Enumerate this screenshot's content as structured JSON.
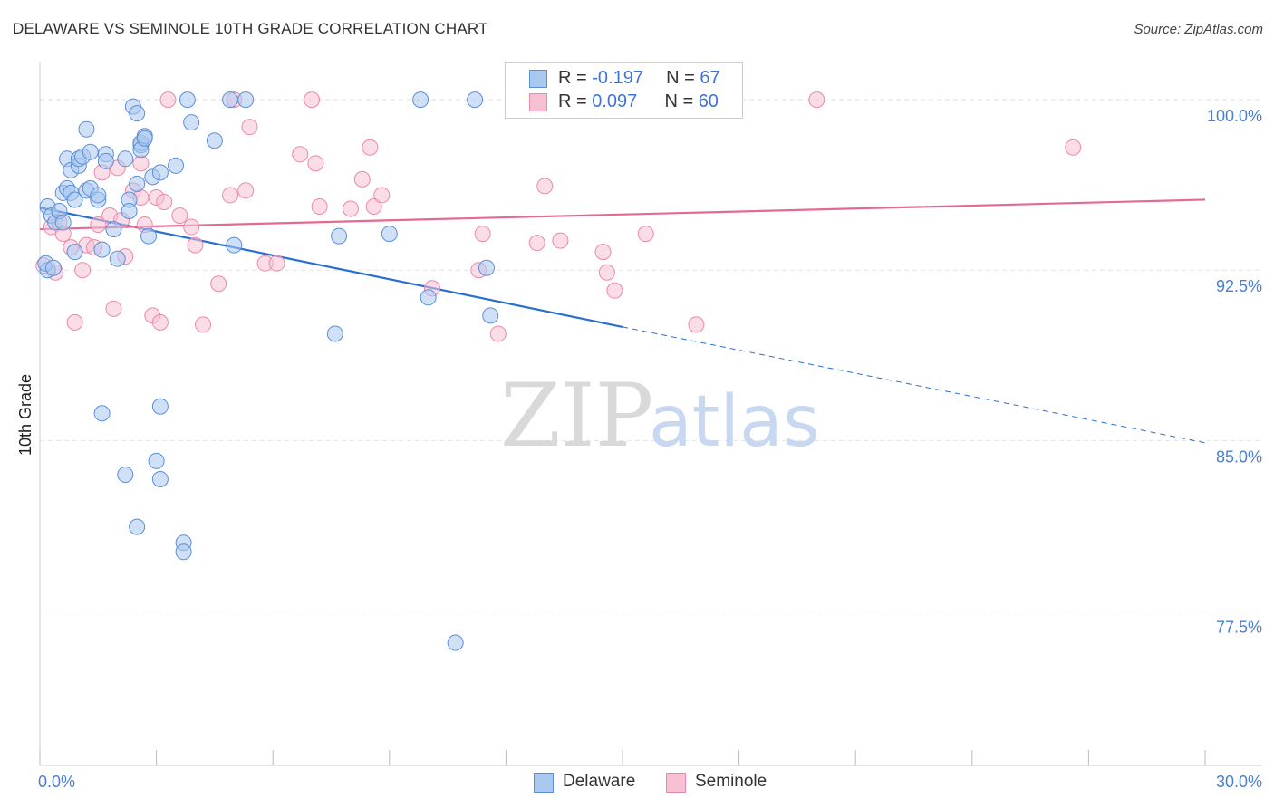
{
  "title": "DELAWARE VS SEMINOLE 10TH GRADE CORRELATION CHART",
  "source": "Source: ZipAtlas.com",
  "watermark": {
    "zip": "ZIP",
    "atlas": "atlas"
  },
  "colors": {
    "blue_fill": "#a9c8f0",
    "blue_stroke": "#5b8fd8",
    "blue_line": "#2a6fd0",
    "pink_fill": "#f7c1d3",
    "pink_stroke": "#e98aaa",
    "pink_line": "#e46a93",
    "tick_text": "#4a7fd6",
    "grid": "#e4e4e4"
  },
  "legend": {
    "rows": [
      {
        "r_label": "R = ",
        "r_value": "-0.197",
        "n_label": "N = ",
        "n_value": "67"
      },
      {
        "r_label": "R = ",
        "r_value": "0.097",
        "n_label": "N = ",
        "n_value": "60"
      }
    ]
  },
  "chart_data": {
    "type": "scatter",
    "title": "DELAWARE VS SEMINOLE 10TH GRADE CORRELATION CHART",
    "xlabel": "",
    "ylabel": "10th Grade",
    "xlim": [
      0,
      30
    ],
    "ylim": [
      70.7,
      101.2
    ],
    "x_tick_labels": [
      "0.0%",
      "30.0%"
    ],
    "y_ticks": [
      77.5,
      85.0,
      92.5,
      100.0
    ],
    "y_tick_labels": [
      "77.5%",
      "85.0%",
      "92.5%",
      "100.0%"
    ],
    "grid": true,
    "legend_position": "bottom",
    "series": [
      {
        "name": "Delaware",
        "R": -0.197,
        "N": 67,
        "trend": {
          "x0": 0.0,
          "y0": 95.25,
          "x1": 15.0,
          "y1": 90.0,
          "dashed_to_x": 30.0,
          "dashed_to_y": 84.9
        },
        "points": [
          [
            0.2,
            95.3
          ],
          [
            0.3,
            94.9
          ],
          [
            0.4,
            94.6
          ],
          [
            0.5,
            95.1
          ],
          [
            0.6,
            94.6
          ],
          [
            0.6,
            95.9
          ],
          [
            0.7,
            96.1
          ],
          [
            0.8,
            95.9
          ],
          [
            0.9,
            95.6
          ],
          [
            0.7,
            97.4
          ],
          [
            0.8,
            96.9
          ],
          [
            1.0,
            97.1
          ],
          [
            1.0,
            97.4
          ],
          [
            1.1,
            97.5
          ],
          [
            1.2,
            96.0
          ],
          [
            1.3,
            96.1
          ],
          [
            1.2,
            98.7
          ],
          [
            1.3,
            97.7
          ],
          [
            1.5,
            95.6
          ],
          [
            1.5,
            95.8
          ],
          [
            1.7,
            97.6
          ],
          [
            1.7,
            97.3
          ],
          [
            1.9,
            94.3
          ],
          [
            2.0,
            93.0
          ],
          [
            1.6,
            93.4
          ],
          [
            0.9,
            93.3
          ],
          [
            0.2,
            92.5
          ],
          [
            2.2,
            97.4
          ],
          [
            2.3,
            95.6
          ],
          [
            2.3,
            95.1
          ],
          [
            2.4,
            99.7
          ],
          [
            2.5,
            96.3
          ],
          [
            2.5,
            99.4
          ],
          [
            2.6,
            98.0
          ],
          [
            2.6,
            98.1
          ],
          [
            2.6,
            97.8
          ],
          [
            2.7,
            98.4
          ],
          [
            2.7,
            98.3
          ],
          [
            2.8,
            94.0
          ],
          [
            2.9,
            96.6
          ],
          [
            3.1,
            96.8
          ],
          [
            3.5,
            97.1
          ],
          [
            3.9,
            99.0
          ],
          [
            3.8,
            100.0
          ],
          [
            4.5,
            98.2
          ],
          [
            4.9,
            100.0
          ],
          [
            5.3,
            100.0
          ],
          [
            5.0,
            93.6
          ],
          [
            7.7,
            94.0
          ],
          [
            7.6,
            89.7
          ],
          [
            9.0,
            94.1
          ],
          [
            9.8,
            100.0
          ],
          [
            11.2,
            100.0
          ],
          [
            10.0,
            91.3
          ],
          [
            11.5,
            92.6
          ],
          [
            11.6,
            90.5
          ],
          [
            1.6,
            86.2
          ],
          [
            3.1,
            86.5
          ],
          [
            2.2,
            83.5
          ],
          [
            3.0,
            84.1
          ],
          [
            3.1,
            83.3
          ],
          [
            2.5,
            81.2
          ],
          [
            3.7,
            80.5
          ],
          [
            3.7,
            80.1
          ],
          [
            10.7,
            76.1
          ],
          [
            0.15,
            92.8
          ],
          [
            0.35,
            92.6
          ]
        ]
      },
      {
        "name": "Seminole",
        "R": 0.097,
        "N": 60,
        "trend": {
          "x0": 0.0,
          "y0": 94.3,
          "x1": 30.0,
          "y1": 95.6
        },
        "points": [
          [
            0.3,
            94.4
          ],
          [
            0.4,
            92.4
          ],
          [
            0.5,
            94.6
          ],
          [
            0.6,
            94.1
          ],
          [
            0.8,
            93.5
          ],
          [
            0.9,
            90.2
          ],
          [
            1.1,
            92.5
          ],
          [
            1.2,
            93.6
          ],
          [
            1.4,
            93.5
          ],
          [
            1.5,
            94.5
          ],
          [
            1.6,
            96.8
          ],
          [
            1.8,
            94.9
          ],
          [
            1.9,
            90.8
          ],
          [
            2.0,
            97.0
          ],
          [
            2.1,
            94.7
          ],
          [
            2.2,
            93.1
          ],
          [
            2.4,
            96.0
          ],
          [
            2.6,
            97.2
          ],
          [
            2.6,
            95.7
          ],
          [
            2.7,
            94.5
          ],
          [
            2.9,
            90.5
          ],
          [
            3.0,
            95.7
          ],
          [
            3.1,
            90.2
          ],
          [
            3.2,
            95.5
          ],
          [
            3.6,
            94.9
          ],
          [
            3.9,
            94.4
          ],
          [
            4.0,
            93.6
          ],
          [
            4.2,
            90.1
          ],
          [
            4.6,
            91.9
          ],
          [
            4.9,
            95.8
          ],
          [
            5.0,
            100.0
          ],
          [
            5.3,
            96.0
          ],
          [
            5.4,
            98.8
          ],
          [
            5.8,
            92.8
          ],
          [
            6.1,
            92.8
          ],
          [
            6.7,
            97.6
          ],
          [
            7.1,
            97.2
          ],
          [
            7.2,
            95.3
          ],
          [
            7.0,
            100.0
          ],
          [
            8.0,
            95.2
          ],
          [
            8.3,
            96.5
          ],
          [
            8.6,
            95.3
          ],
          [
            8.8,
            95.8
          ],
          [
            8.5,
            97.9
          ],
          [
            10.1,
            91.7
          ],
          [
            11.3,
            92.5
          ],
          [
            11.4,
            94.1
          ],
          [
            11.8,
            89.7
          ],
          [
            12.8,
            93.7
          ],
          [
            13.4,
            93.8
          ],
          [
            13.0,
            96.2
          ],
          [
            14.5,
            93.3
          ],
          [
            14.6,
            92.4
          ],
          [
            14.8,
            91.6
          ],
          [
            15.6,
            94.1
          ],
          [
            16.9,
            90.1
          ],
          [
            20.0,
            100.0
          ],
          [
            26.6,
            97.9
          ],
          [
            3.3,
            100.0
          ],
          [
            0.1,
            92.7
          ]
        ]
      }
    ]
  },
  "bottom_legend": [
    {
      "name": "Delaware"
    },
    {
      "name": "Seminole"
    }
  ]
}
